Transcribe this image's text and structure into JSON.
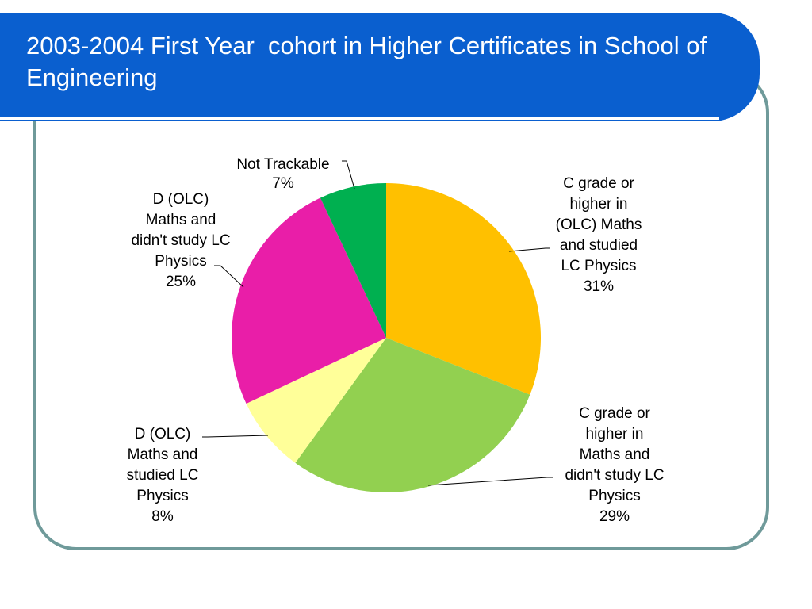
{
  "slide": {
    "title": "2003-2004 First Year  cohort in Higher Certificates in School of Engineering"
  },
  "chart_data": {
    "type": "pie",
    "slices": [
      {
        "label": "C grade or higher in (OLC) Maths and studied LC Physics",
        "label_lines": [
          "C grade or",
          "higher in",
          "(OLC) Maths",
          "and studied",
          "LC Physics"
        ],
        "value": 31,
        "value_label": "31%",
        "color": "#ffc000"
      },
      {
        "label": "C grade or higher in Maths and didn't study LC Physics",
        "label_lines": [
          "C grade or",
          "higher in",
          "Maths and",
          "didn't study LC",
          "Physics"
        ],
        "value": 29,
        "value_label": "29%",
        "color": "#92d050"
      },
      {
        "label": "D (OLC) Maths and studied LC Physics",
        "label_lines": [
          "D (OLC)",
          "Maths and",
          "studied LC",
          "Physics"
        ],
        "value": 8,
        "value_label": "8%",
        "color": "#ffff99"
      },
      {
        "label": "D (OLC) Maths and didn't study LC Physics",
        "label_lines": [
          "D (OLC)",
          "Maths and",
          "didn't study LC",
          "Physics"
        ],
        "value": 25,
        "value_label": "25%",
        "color": "#e91ea8"
      },
      {
        "label": "Not Trackable",
        "label_lines": [
          "Not Trackable"
        ],
        "value": 7,
        "value_label": "7%",
        "color": "#00b050"
      }
    ],
    "start_angle": "12 o'clock",
    "direction": "clockwise",
    "legend": "none"
  }
}
